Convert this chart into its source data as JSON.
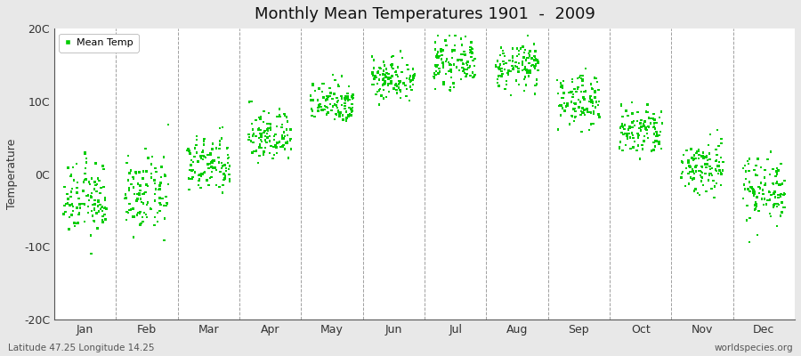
{
  "title": "Monthly Mean Temperatures 1901  -  2009",
  "ylabel": "Temperature",
  "xlabel_bottom_left": "Latitude 47.25 Longitude 14.25",
  "xlabel_bottom_right": "worldspecies.org",
  "ylim": [
    -20,
    20
  ],
  "yticks": [
    -20,
    -10,
    0,
    10,
    20
  ],
  "ytick_labels": [
    "-20C",
    "-10C",
    "0C",
    "10C",
    "20C"
  ],
  "months": [
    "Jan",
    "Feb",
    "Mar",
    "Apr",
    "May",
    "Jun",
    "Jul",
    "Aug",
    "Sep",
    "Oct",
    "Nov",
    "Dec"
  ],
  "dot_color": "#00CC00",
  "figure_bg_color": "#e8e8e8",
  "plot_bg_color": "#ffffff",
  "legend_label": "Mean Temp",
  "num_years": 109,
  "monthly_mean_temps": [
    -3.5,
    -3.0,
    1.2,
    5.2,
    10.0,
    13.2,
    15.2,
    14.8,
    10.2,
    5.8,
    1.0,
    -2.0
  ],
  "monthly_std_temps": [
    2.5,
    2.5,
    2.0,
    1.8,
    1.5,
    1.5,
    1.5,
    1.5,
    1.8,
    1.8,
    2.0,
    2.3
  ],
  "dashed_line_color": "#888888",
  "spine_color": "#555555",
  "tick_label_color": "#333333",
  "bottom_text_color": "#555555"
}
